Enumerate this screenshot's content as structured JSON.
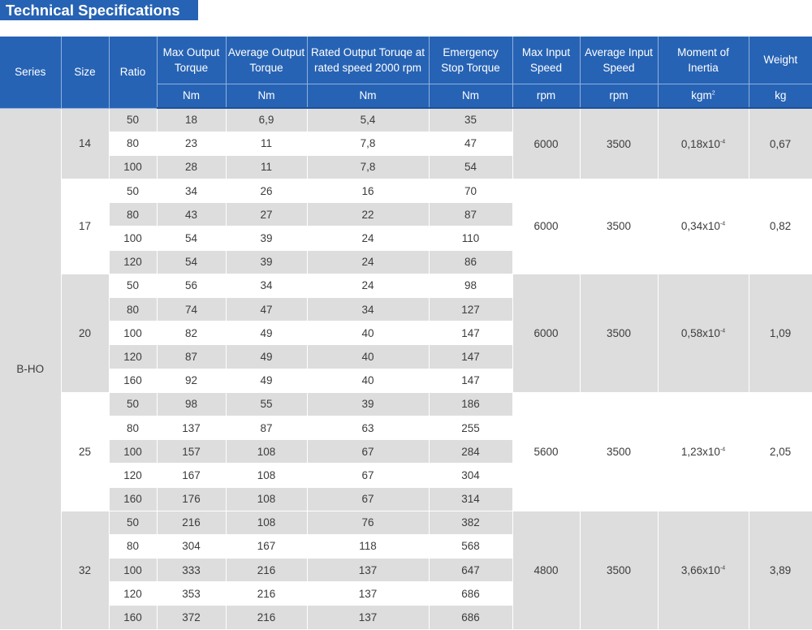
{
  "title": "Technical Specifications",
  "header": {
    "columns": [
      "Series",
      "Size",
      "Ratio",
      "Max Output Torque",
      "Average Output Torque",
      "Rated Output Toruqe at rated speed 2000 rpm",
      "Emergency Stop Torque",
      "Max Input Speed",
      "Average Input Speed",
      "Moment of Inertia",
      "Weight"
    ],
    "col3_line1": "Max Output",
    "col3_line2": "Torque",
    "col4_line1": "Average Output",
    "col4_line2": "Torque",
    "col5_line1": "Rated Output Toruqe at",
    "col5_line2": "rated speed 2000 rpm",
    "col6_line1": "Emergency",
    "col6_line2": "Stop Torque",
    "col7_line1": "Max Input",
    "col7_line2": "Speed",
    "col8_line1": "Average Input",
    "col8_line2": "Speed",
    "col9_line1": "Moment of",
    "col9_line2": "Inertia",
    "units": [
      "Nm",
      "Nm",
      "Nm",
      "Nm",
      "rpm",
      "rpm",
      "kgm",
      "kg"
    ],
    "unit_sup": "2"
  },
  "series": "B-HO",
  "groups": [
    {
      "size": "14",
      "max_speed": "6000",
      "avg_speed": "3500",
      "inertia": "0,18x10",
      "inertia_exp": "-4",
      "weight": "0,67",
      "rows": [
        [
          "50",
          "18",
          "6,9",
          "5,4",
          "35"
        ],
        [
          "80",
          "23",
          "11",
          "7,8",
          "47"
        ],
        [
          "100",
          "28",
          "11",
          "7,8",
          "54"
        ]
      ]
    },
    {
      "size": "17",
      "max_speed": "6000",
      "avg_speed": "3500",
      "inertia": "0,34x10",
      "inertia_exp": "-4",
      "weight": "0,82",
      "rows": [
        [
          "50",
          "34",
          "26",
          "16",
          "70"
        ],
        [
          "80",
          "43",
          "27",
          "22",
          "87"
        ],
        [
          "100",
          "54",
          "39",
          "24",
          "110"
        ],
        [
          "120",
          "54",
          "39",
          "24",
          "86"
        ]
      ]
    },
    {
      "size": "20",
      "max_speed": "6000",
      "avg_speed": "3500",
      "inertia": "0,58x10",
      "inertia_exp": "-4",
      "weight": "1,09",
      "rows": [
        [
          "50",
          "56",
          "34",
          "24",
          "98"
        ],
        [
          "80",
          "74",
          "47",
          "34",
          "127"
        ],
        [
          "100",
          "82",
          "49",
          "40",
          "147"
        ],
        [
          "120",
          "87",
          "49",
          "40",
          "147"
        ],
        [
          "160",
          "92",
          "49",
          "40",
          "147"
        ]
      ]
    },
    {
      "size": "25",
      "max_speed": "5600",
      "avg_speed": "3500",
      "inertia": "1,23x10",
      "inertia_exp": "-4",
      "weight": "2,05",
      "rows": [
        [
          "50",
          "98",
          "55",
          "39",
          "186"
        ],
        [
          "80",
          "137",
          "87",
          "63",
          "255"
        ],
        [
          "100",
          "157",
          "108",
          "67",
          "284"
        ],
        [
          "120",
          "167",
          "108",
          "67",
          "304"
        ],
        [
          "160",
          "176",
          "108",
          "67",
          "314"
        ]
      ]
    },
    {
      "size": "32",
      "max_speed": "4800",
      "avg_speed": "3500",
      "inertia": "3,66x10",
      "inertia_exp": "-4",
      "weight": "3,89",
      "rows": [
        [
          "50",
          "216",
          "108",
          "76",
          "382"
        ],
        [
          "80",
          "304",
          "167",
          "118",
          "568"
        ],
        [
          "100",
          "333",
          "216",
          "137",
          "647"
        ],
        [
          "120",
          "353",
          "216",
          "137",
          "686"
        ],
        [
          "160",
          "372",
          "216",
          "137",
          "686"
        ]
      ]
    }
  ]
}
